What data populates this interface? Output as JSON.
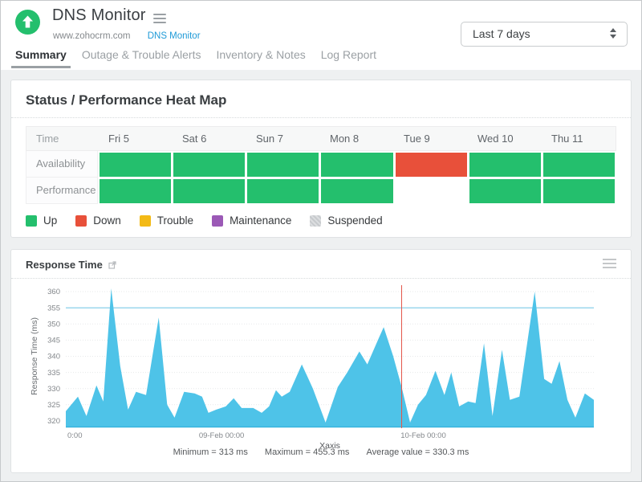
{
  "header": {
    "title": "DNS Monitor",
    "breadcrumb": {
      "site": "www.zohocrm.com",
      "monitor_link": "DNS Monitor"
    },
    "period_selector": {
      "value": "Last 7 days"
    },
    "status_icon_color": "#24bf6d"
  },
  "tabs": [
    {
      "label": "Summary",
      "active": true
    },
    {
      "label": "Outage & Trouble Alerts",
      "active": false
    },
    {
      "label": "Inventory & Notes",
      "active": false
    },
    {
      "label": "Log Report",
      "active": false
    }
  ],
  "heatmap": {
    "title": "Status / Performance Heat Map",
    "time_header": "Time",
    "days": [
      "Fri 5",
      "Sat 6",
      "Sun 7",
      "Mon 8",
      "Tue 9",
      "Wed 10",
      "Thu 11"
    ],
    "rows": [
      {
        "label": "Availability",
        "cells": [
          "up",
          "up",
          "up",
          "up",
          "down",
          "up",
          "up"
        ]
      },
      {
        "label": "Performance",
        "cells": [
          "up",
          "up",
          "up",
          "up",
          "none",
          "up",
          "up"
        ]
      }
    ],
    "status_colors": {
      "up": "#24bf6d",
      "down": "#e8503a",
      "trouble": "#f3ba16",
      "maintenance": "#9b59b6",
      "suspended": "#cdd0d2",
      "none": "#ffffff"
    },
    "legend": [
      {
        "label": "Up",
        "status": "up",
        "color": "#24bf6d"
      },
      {
        "label": "Down",
        "status": "down",
        "color": "#e8503a"
      },
      {
        "label": "Trouble",
        "status": "trouble",
        "color": "#f3ba16"
      },
      {
        "label": "Maintenance",
        "status": "maintenance",
        "color": "#9b59b6"
      },
      {
        "label": "Suspended",
        "status": "suspended",
        "color": "#cdd0d2"
      }
    ]
  },
  "chart_card": {
    "title": "Response Time",
    "stats": {
      "minimum": "Minimum = 313 ms",
      "maximum": "Maximum = 455.3 ms",
      "average": "Average value = 330.3 ms"
    }
  },
  "chart_data": {
    "type": "area",
    "title": "Response Time",
    "ylabel": "Response Time (ms)",
    "xlabel": "Xaxis",
    "ylim": [
      318,
      362
    ],
    "yticks": [
      320,
      325,
      330,
      335,
      340,
      345,
      350,
      355,
      360
    ],
    "xticks": [
      {
        "label": "0:00",
        "frac": 0.003
      },
      {
        "label": "09-Feb 00:00",
        "frac": 0.295
      },
      {
        "label": "10-Feb 00:00",
        "frac": 0.677
      }
    ],
    "grid": true,
    "legend_position": "none",
    "threshold_line": {
      "value": 355,
      "color": "#9bd7ee"
    },
    "marker_line": {
      "frac": 0.636,
      "color": "#e4564a"
    },
    "series": [
      {
        "name": "Response Time (ms)",
        "color": "#4ec3e8",
        "points": [
          [
            0.0,
            323
          ],
          [
            0.023,
            327.5
          ],
          [
            0.039,
            321.5
          ],
          [
            0.058,
            331
          ],
          [
            0.071,
            326
          ],
          [
            0.086,
            361
          ],
          [
            0.103,
            337
          ],
          [
            0.118,
            323.5
          ],
          [
            0.133,
            329
          ],
          [
            0.152,
            328
          ],
          [
            0.176,
            352
          ],
          [
            0.192,
            325
          ],
          [
            0.206,
            321
          ],
          [
            0.224,
            329
          ],
          [
            0.244,
            328.5
          ],
          [
            0.258,
            327.5
          ],
          [
            0.27,
            322.5
          ],
          [
            0.285,
            323.5
          ],
          [
            0.303,
            324.5
          ],
          [
            0.318,
            327
          ],
          [
            0.333,
            324
          ],
          [
            0.355,
            324
          ],
          [
            0.371,
            322.5
          ],
          [
            0.385,
            324.5
          ],
          [
            0.398,
            329.5
          ],
          [
            0.409,
            327.5
          ],
          [
            0.424,
            329
          ],
          [
            0.447,
            337.5
          ],
          [
            0.468,
            330
          ],
          [
            0.492,
            319.5
          ],
          [
            0.515,
            330.5
          ],
          [
            0.533,
            335
          ],
          [
            0.556,
            341.5
          ],
          [
            0.571,
            337.5
          ],
          [
            0.591,
            345
          ],
          [
            0.602,
            349
          ],
          [
            0.62,
            340
          ],
          [
            0.636,
            330.5
          ],
          [
            0.652,
            319.5
          ],
          [
            0.667,
            325
          ],
          [
            0.682,
            328
          ],
          [
            0.7,
            335.5
          ],
          [
            0.717,
            328
          ],
          [
            0.73,
            335
          ],
          [
            0.745,
            324.5
          ],
          [
            0.762,
            326
          ],
          [
            0.776,
            325.5
          ],
          [
            0.792,
            344
          ],
          [
            0.808,
            321.5
          ],
          [
            0.826,
            342
          ],
          [
            0.841,
            326.5
          ],
          [
            0.859,
            327.5
          ],
          [
            0.888,
            360
          ],
          [
            0.906,
            333
          ],
          [
            0.92,
            331.5
          ],
          [
            0.935,
            338.5
          ],
          [
            0.95,
            326.5
          ],
          [
            0.965,
            321
          ],
          [
            0.983,
            328.5
          ],
          [
            1.0,
            326.5
          ]
        ]
      }
    ],
    "stats": {
      "minimum_ms": 313,
      "maximum_ms": 455.3,
      "average_ms": 330.3
    }
  }
}
